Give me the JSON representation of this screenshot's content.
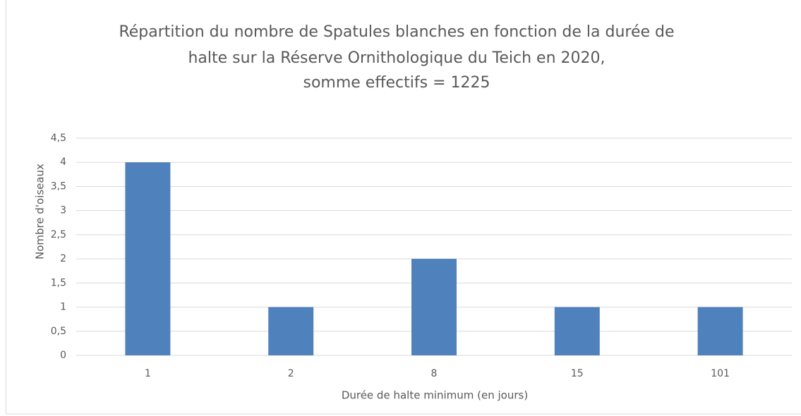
{
  "chart_data": {
    "type": "bar",
    "title": [
      "Répartition du nombre de Spatules blanches en fonction de la durée de",
      "halte sur la Réserve Ornithologique du Teich en 2020,",
      "somme effectifs = 1225"
    ],
    "x_label": "Durée de halte minimum (en jours)",
    "y_label": "Nombre d'oiseaux",
    "categories": [
      "1",
      "2",
      "8",
      "15",
      "101"
    ],
    "values": [
      4,
      1,
      2,
      1,
      1
    ],
    "color": "#4f81bd",
    "ylim": [
      0,
      4.5
    ],
    "yticks": [
      0,
      {
        "value": 0.5,
        "label": "0,5"
      },
      1,
      {
        "value": 1.5,
        "label": "1,5"
      },
      2,
      {
        "value": 2.5,
        "label": "2,5"
      },
      3,
      {
        "value": 3.5,
        "label": "3,5"
      },
      4,
      {
        "value": 4.5,
        "label": "4,5"
      }
    ],
    "grid": true
  }
}
